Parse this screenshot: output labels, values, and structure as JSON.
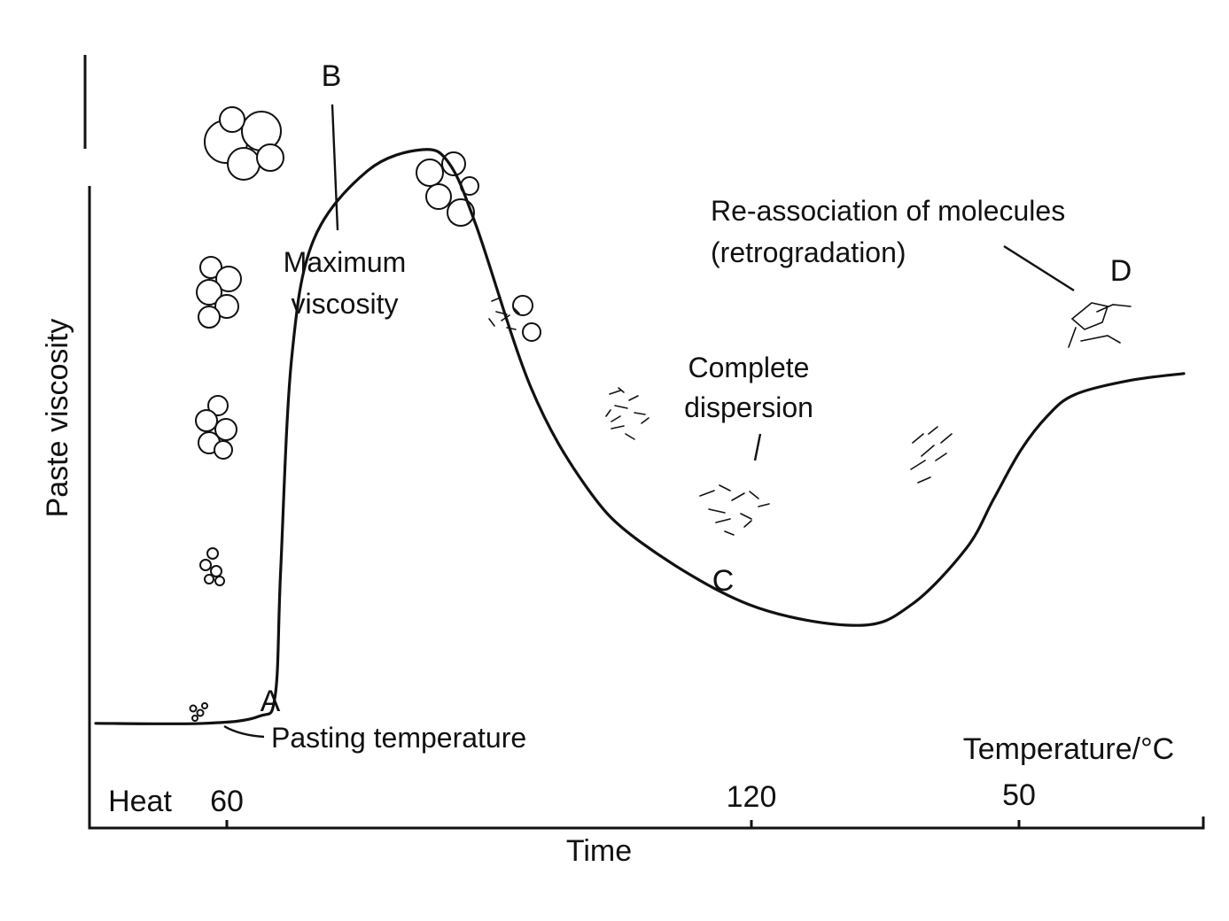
{
  "chart_data": {
    "type": "line",
    "xlabel": "Time",
    "ylabel": "Paste viscosity",
    "x_scale_label": "Temperature/°C",
    "x_start_label": "Heat",
    "x_ticks": [
      "60",
      "120",
      "50"
    ],
    "grid": false,
    "legend": "none",
    "points": [
      {
        "label": "A",
        "caption": "Pasting temperature"
      },
      {
        "label": "B",
        "caption": "Maximum viscosity"
      },
      {
        "label": "C",
        "caption": "Complete dispersion"
      },
      {
        "label": "D",
        "caption": "Re-association of molecules (retrogradation)"
      }
    ],
    "series": [
      {
        "x": [
          0,
          20,
          30,
          33,
          34,
          36,
          40,
          50,
          60,
          65,
          70,
          80,
          90,
          100,
          120,
          140,
          150,
          160,
          165,
          170,
          175,
          180,
          190,
          200
        ],
        "y": [
          8,
          8,
          9,
          12,
          30,
          60,
          77,
          87,
          90,
          88,
          79,
          56,
          42,
          34,
          25,
          22,
          25,
          33,
          40,
          47,
          52,
          55,
          57,
          58
        ]
      }
    ]
  },
  "annotations": {
    "max_line1": "Maximum",
    "max_line2": "viscosity",
    "disp_line1": "Complete",
    "disp_line2": "dispersion",
    "retro_line1": "Re-association of molecules",
    "retro_line2": "(retrogradation)"
  }
}
